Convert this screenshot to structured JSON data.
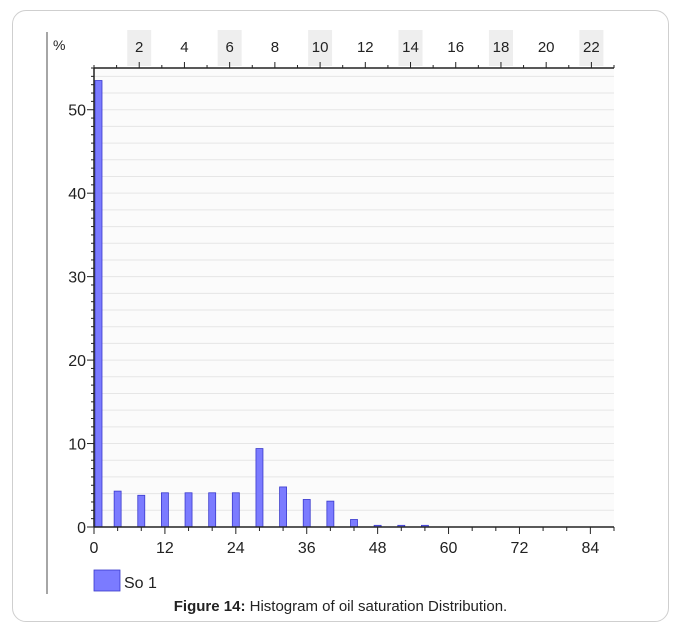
{
  "figure": {
    "caption_label": "Figure 14:",
    "caption_text": " Histogram of oil saturation Distribution."
  },
  "chart_data": {
    "type": "bar",
    "y_unit_label": "%",
    "x": [
      0,
      4,
      8,
      12,
      16,
      20,
      24,
      28,
      32,
      36,
      40,
      44,
      48,
      52,
      56
    ],
    "values": [
      53.5,
      4.3,
      3.8,
      4.1,
      4.1,
      4.1,
      4.1,
      9.4,
      4.8,
      3.3,
      3.1,
      0.9,
      0.2,
      0.2,
      0.2
    ],
    "xlim": [
      0,
      88
    ],
    "ylim": [
      0,
      55
    ],
    "x_ticks": [
      0,
      12,
      24,
      36,
      48,
      60,
      72,
      84
    ],
    "y_ticks": [
      0,
      10,
      20,
      30,
      40,
      50
    ],
    "top_axis_ticks": [
      2,
      4,
      6,
      8,
      10,
      12,
      14,
      16,
      18,
      20,
      22
    ],
    "top_axis_range": [
      0,
      23
    ],
    "legend": {
      "label": "So 1",
      "color": "#7b7bff",
      "placement": "bottom-left"
    },
    "bar_color": "#7b7bff",
    "grid": true
  }
}
